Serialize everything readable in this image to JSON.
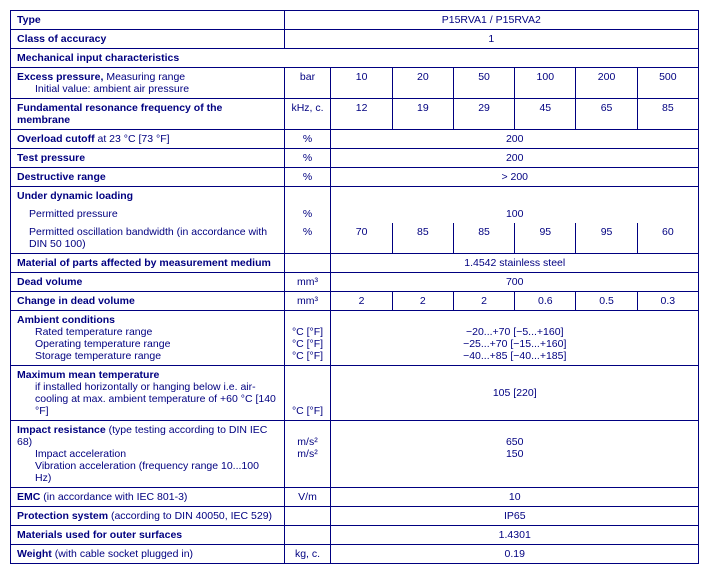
{
  "header": {
    "type_label": "Type",
    "type_value": "P15RVA1 / P15RVA2",
    "accuracy_label": "Class of accuracy",
    "accuracy_value": "1",
    "mech_label": "Mechanical input characteristics"
  },
  "excess": {
    "title": "Excess pressure,",
    "title2": " Measuring range",
    "sub": "Initial value: ambient air pressure",
    "unit": "bar",
    "vals": [
      "10",
      "20",
      "50",
      "100",
      "200",
      "500"
    ]
  },
  "freq": {
    "label": "Fundamental resonance frequency of the membrane",
    "unit": "kHz, c.",
    "vals": [
      "12",
      "19",
      "29",
      "45",
      "65",
      "85"
    ]
  },
  "overload": {
    "label_b": "Overload cutoff",
    "label_r": " at 23 °C [73 °F]",
    "unit": "%",
    "val": "200"
  },
  "test": {
    "label": "Test pressure",
    "unit": "%",
    "val": "200"
  },
  "destr": {
    "label": "Destructive range",
    "unit": "%",
    "val": "> 200"
  },
  "dyn": {
    "title": "Under dynamic loading",
    "l1": "Permitted pressure",
    "l2": "Permitted oscillation bandwidth (in accordance with DIN 50 100)",
    "unit": "%",
    "v1": "100",
    "vals": [
      "70",
      "85",
      "85",
      "95",
      "95",
      "60"
    ]
  },
  "material": {
    "label": "Material of parts affected by measurement medium",
    "val": "1.4542 stainless steel"
  },
  "dead": {
    "label": "Dead volume",
    "unit": "mm³",
    "val": "700"
  },
  "change": {
    "label": "Change in dead volume",
    "unit": "mm³",
    "vals": [
      "2",
      "2",
      "2",
      "0.6",
      "0.5",
      "0.3"
    ]
  },
  "ambient": {
    "title": "Ambient conditions",
    "l1": "Rated temperature range",
    "l2": "Operating temperature range",
    "l3": "Storage temperature range",
    "unit": "°C [°F]",
    "v1": "−20...+70 [−5...+160]",
    "v2": "−25...+70 [−15...+160]",
    "v3": "−40...+85 [−40...+185]"
  },
  "maxtemp": {
    "title": "Maximum mean temperature",
    "sub": "if installed horizontally or hanging below i.e. air-cooling at max. ambient temperature of +60 °C [140 °F]",
    "unit": "°C [°F]",
    "val": "105 [220]"
  },
  "impact": {
    "title_b": "Impact resistance",
    "title_r": " (type testing according to DIN IEC 68)",
    "l1": "Impact acceleration",
    "l2": "Vibration acceleration (frequency range 10...100 Hz)",
    "unit": "m/s²",
    "v1": "650",
    "v2": "150"
  },
  "emc": {
    "label_b": "EMC",
    "label_r": " (in accordance with IEC 801-3)",
    "unit": "V/m",
    "val": "10"
  },
  "prot": {
    "label_b": "Protection system",
    "label_r": " (according to DIN 40050, IEC 529)",
    "val": "IP65"
  },
  "matsurf": {
    "label": "Materials used for outer surfaces",
    "val": "1.4301"
  },
  "weight": {
    "label_b": "Weight",
    "label_r": " (with cable socket plugged in)",
    "unit": "kg, c.",
    "val": "0.19"
  }
}
